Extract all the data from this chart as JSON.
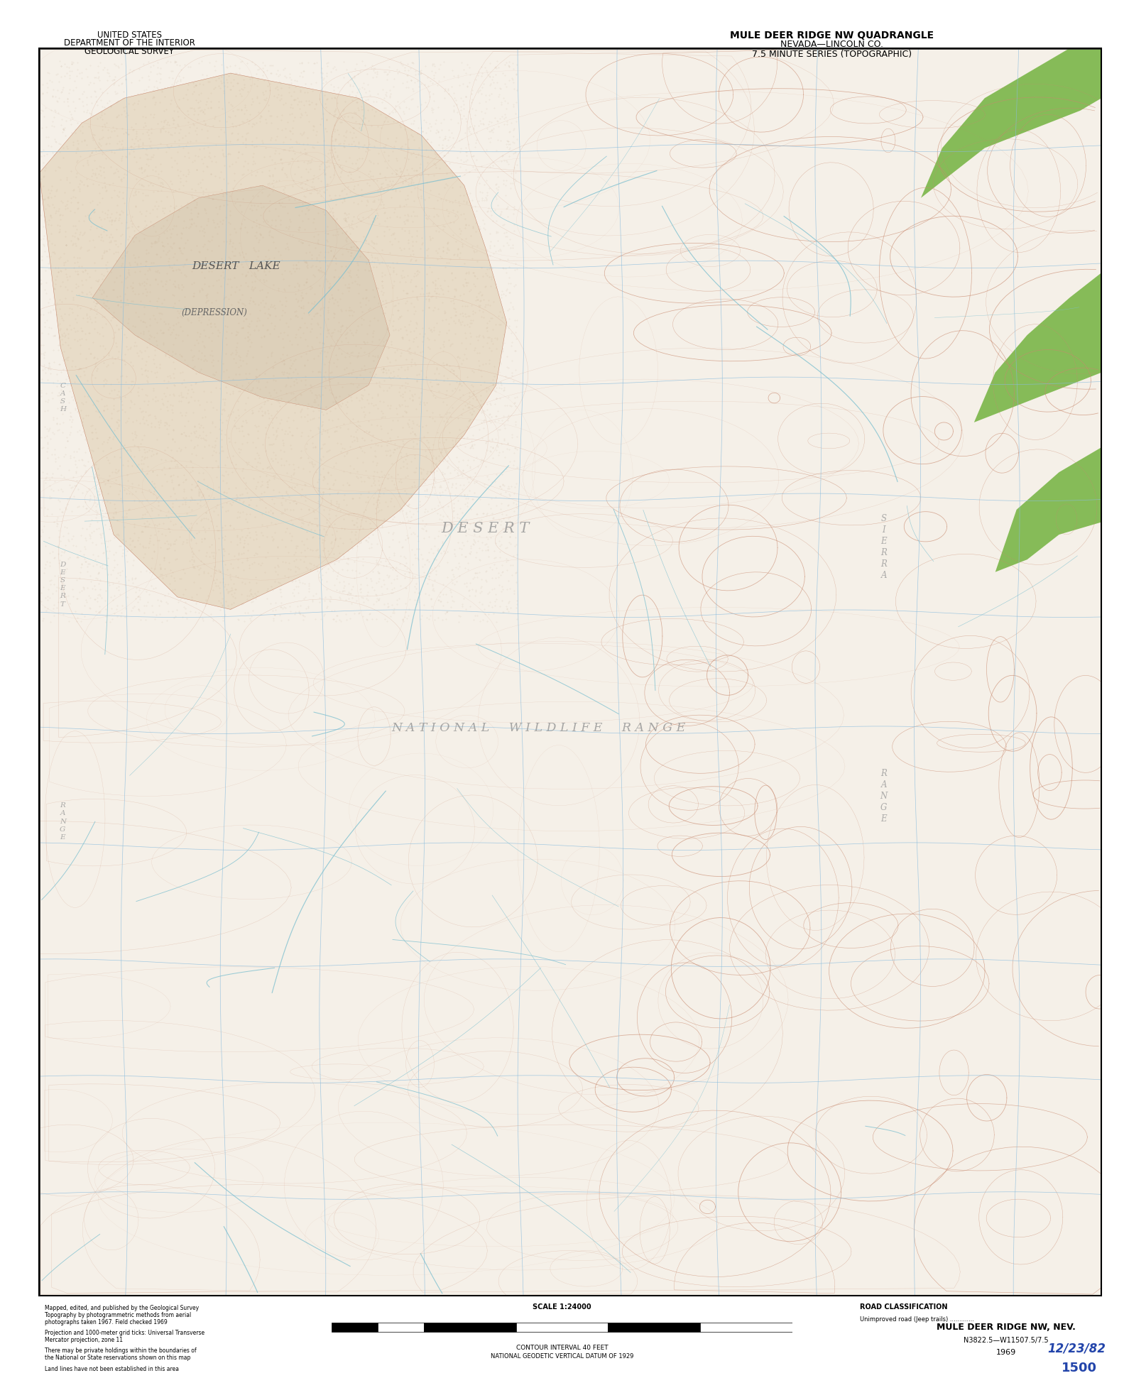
{
  "title_left_line1": "UNITED STATES",
  "title_left_line2": "DEPARTMENT OF THE INTERIOR",
  "title_left_line3": "GEOLOGICAL SURVEY",
  "title_right_line1": "MULE DEER RIDGE NW QUADRANGLE",
  "title_right_line2": "NEVADA—LINCOLN CO.",
  "title_right_line3": "7.5 MINUTE SERIES (TOPOGRAPHIC)",
  "bottom_right_name": "MULE DEER RIDGE NW, NEV.",
  "bottom_right_coords": "N3822.5—W11507.5/7.5",
  "bottom_right_year": "1969",
  "bottom_right_stamp": "12/23/82",
  "bottom_right_number": "1500",
  "map_bg_color": "#f5f0e8",
  "desert_lake_color": "#e8dcc8",
  "desert_lake_depression_color": "#ddd0ba",
  "green_vegetation_color": "#7ab648",
  "contour_color": "#c8896e",
  "water_color": "#7bbfcf",
  "grid_color": "#88bbdd",
  "text_color": "#222222",
  "border_color": "#333333",
  "labels": {
    "desert_lake": "DESERT   LAKE",
    "depression": "(DEPRESSION)",
    "desert": "D E S E R T",
    "national_wildlife_range": "N A T I O N A L     W I L D L I F E     R A N G E"
  },
  "scale_text": "SCALE 1:24000",
  "contour_interval": "CONTOUR INTERVAL 40 FEET",
  "datum": "NATIONAL GEODETIC VERTICAL DATUM OF 1929",
  "road_class": "ROAD CLASSIFICATION",
  "unimproved_road": "Unimproved road (Jeep trails) .............",
  "bottom_notes_1": "Mapped, edited, and published by the Geological Survey",
  "bottom_notes_2": "Topography by photogrammetric methods from aerial",
  "bottom_notes_3": "photographs taken 1967. Field checked 1969",
  "bottom_notes_4": "Projection and 1000-meter grid ticks: Universal Transverse",
  "bottom_notes_5": "Mercator projection, zone 11",
  "bottom_notes_6": "There may be private holdings within the boundaries of",
  "bottom_notes_7": "the National or State reservations shown on this map",
  "bottom_notes_8": "Land lines have not been established in this area",
  "stamp_color": "#2244aa",
  "left_range_label": "C\nA\nS\nH",
  "left_range_label2": "D\nE\nS\nE\nR\nT",
  "left_range_label3": "R\nA\nN\nG\nE"
}
